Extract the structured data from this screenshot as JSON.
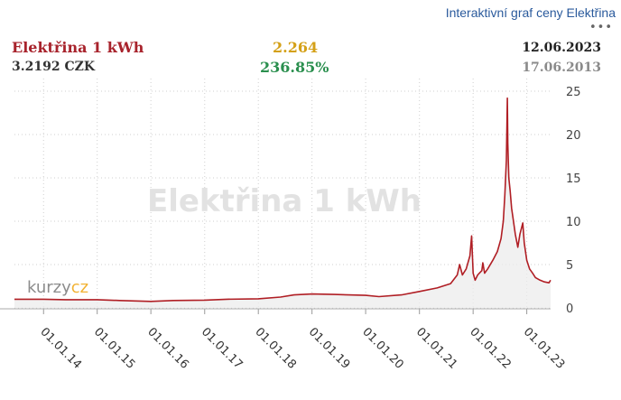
{
  "header": {
    "link_title": "Interaktivní graf ceny Elektřina",
    "menu": "•••",
    "name": "Elektřina 1 kWh",
    "price": "3.2192 CZK",
    "change": "2.264",
    "change_percent": "236.85%",
    "date_current": "12.06.2023",
    "date_reference": "17.06.2013"
  },
  "watermark": "Elektřina 1 kWh",
  "logo": {
    "part1": "kurzy",
    "part2": "cz"
  },
  "colors": {
    "line": "#b01e24",
    "fill": "#ececec",
    "grid": "#cfcfcf"
  },
  "chart_data": {
    "type": "area",
    "title": "",
    "xlabel": "",
    "ylabel": "",
    "ylim": [
      0,
      25
    ],
    "y_ticks": [
      0,
      5,
      10,
      15,
      20,
      25
    ],
    "x_ticks": [
      "01.01.14",
      "01.01.15",
      "01.01.16",
      "01.01.17",
      "01.01.18",
      "01.01.19",
      "01.01.20",
      "01.01.21",
      "01.01.22",
      "01.01.23"
    ],
    "x_range": [
      "2013-06-17",
      "2023-06-12"
    ],
    "grid": true,
    "series": [
      {
        "points": [
          [
            "2013-06-17",
            1.0
          ],
          [
            "2013-10-01",
            1.0
          ],
          [
            "2014-01-01",
            1.0
          ],
          [
            "2014-06-01",
            0.95
          ],
          [
            "2015-01-01",
            0.95
          ],
          [
            "2015-06-01",
            0.85
          ],
          [
            "2016-01-01",
            0.75
          ],
          [
            "2016-06-01",
            0.85
          ],
          [
            "2017-01-01",
            0.9
          ],
          [
            "2017-06-01",
            1.0
          ],
          [
            "2018-01-01",
            1.05
          ],
          [
            "2018-06-01",
            1.25
          ],
          [
            "2018-09-01",
            1.5
          ],
          [
            "2019-01-01",
            1.6
          ],
          [
            "2019-06-01",
            1.55
          ],
          [
            "2020-01-01",
            1.45
          ],
          [
            "2020-04-01",
            1.3
          ],
          [
            "2020-09-01",
            1.5
          ],
          [
            "2021-01-01",
            1.9
          ],
          [
            "2021-05-01",
            2.3
          ],
          [
            "2021-08-01",
            2.8
          ],
          [
            "2021-09-15",
            3.8
          ],
          [
            "2021-10-01",
            5.0
          ],
          [
            "2021-10-20",
            3.8
          ],
          [
            "2021-11-15",
            4.5
          ],
          [
            "2021-12-10",
            6.0
          ],
          [
            "2021-12-22",
            8.3
          ],
          [
            "2022-01-01",
            4.0
          ],
          [
            "2022-01-15",
            3.2
          ],
          [
            "2022-02-01",
            3.8
          ],
          [
            "2022-03-01",
            4.3
          ],
          [
            "2022-03-08",
            5.2
          ],
          [
            "2022-03-20",
            4.0
          ],
          [
            "2022-04-10",
            4.5
          ],
          [
            "2022-05-15",
            5.5
          ],
          [
            "2022-06-15",
            6.5
          ],
          [
            "2022-07-10",
            8.0
          ],
          [
            "2022-07-25",
            10.0
          ],
          [
            "2022-08-05",
            13.0
          ],
          [
            "2022-08-15",
            17.0
          ],
          [
            "2022-08-22",
            24.2
          ],
          [
            "2022-08-25",
            19.0
          ],
          [
            "2022-09-01",
            15.0
          ],
          [
            "2022-09-10",
            13.5
          ],
          [
            "2022-09-20",
            11.5
          ],
          [
            "2022-10-01",
            10.2
          ],
          [
            "2022-10-15",
            8.5
          ],
          [
            "2022-11-01",
            7.0
          ],
          [
            "2022-11-15",
            8.5
          ],
          [
            "2022-12-05",
            9.8
          ],
          [
            "2022-12-15",
            7.5
          ],
          [
            "2023-01-01",
            5.5
          ],
          [
            "2023-01-20",
            4.5
          ],
          [
            "2023-02-10",
            4.0
          ],
          [
            "2023-03-01",
            3.5
          ],
          [
            "2023-04-01",
            3.2
          ],
          [
            "2023-05-01",
            3.0
          ],
          [
            "2023-06-01",
            2.9
          ],
          [
            "2023-06-12",
            3.2
          ]
        ]
      }
    ]
  }
}
